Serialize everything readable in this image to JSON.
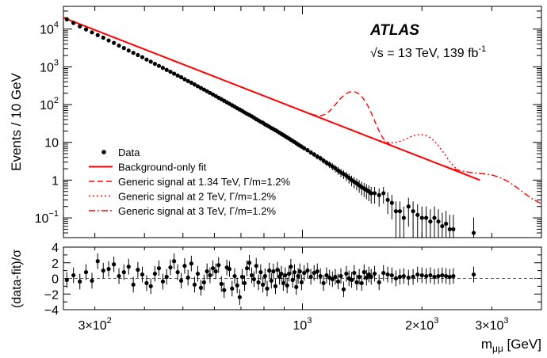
{
  "chart_data": [
    {
      "type": "scatter",
      "panel": "main",
      "ylabel": "Events / 10 GeV",
      "xscale": "log",
      "yscale": "log",
      "xlim": [
        250,
        4000
      ],
      "ylim": [
        0.03,
        40000
      ],
      "y_ticks": [
        {
          "value": 10000,
          "base": "10",
          "exp": "4"
        },
        {
          "value": 1000,
          "base": "10",
          "exp": "3"
        },
        {
          "value": 100,
          "base": "10",
          "exp": "2"
        },
        {
          "value": 10,
          "base": "10",
          "exp": ""
        },
        {
          "value": 1,
          "base": "1",
          "exp": ""
        },
        {
          "value": 0.1,
          "base": "10",
          "exp": "−1"
        }
      ],
      "annotation": {
        "experiment": "ATLAS",
        "energy_prefix": "√s = 13 TeV, 139 fb",
        "energy_exp": "-1"
      },
      "legend": {
        "position": "bottom-left",
        "entries": [
          {
            "label": "Data",
            "style": "marker"
          },
          {
            "label": "Background-only fit",
            "style": "solid"
          },
          {
            "label": "Generic signal at 1.34 TeV, Γ/m=1.2%",
            "style": "dashed"
          },
          {
            "label": "Generic signal at 2 TeV, Γ/m=1.2%",
            "style": "dotted"
          },
          {
            "label": "Generic signal at 3 TeV, Γ/m=1.2%",
            "style": "dashdot"
          }
        ]
      },
      "colors": {
        "data": "#000000",
        "fit": "#ff0000",
        "signal": "#ff0000"
      },
      "series": [
        {
          "name": "Data",
          "x": [
            255,
            265,
            275,
            285,
            295,
            305,
            315,
            325,
            335,
            345,
            355,
            365,
            375,
            385,
            395,
            405,
            415,
            425,
            435,
            445,
            455,
            465,
            475,
            485,
            495,
            505,
            515,
            525,
            535,
            545,
            555,
            565,
            575,
            585,
            595,
            605,
            615,
            625,
            635,
            645,
            655,
            665,
            675,
            685,
            695,
            705,
            715,
            725,
            735,
            745,
            755,
            765,
            775,
            785,
            795,
            805,
            815,
            825,
            835,
            845,
            855,
            865,
            875,
            885,
            895,
            905,
            915,
            925,
            935,
            945,
            955,
            965,
            975,
            985,
            995,
            1010,
            1030,
            1050,
            1070,
            1090,
            1110,
            1130,
            1150,
            1170,
            1190,
            1210,
            1230,
            1250,
            1270,
            1290,
            1310,
            1330,
            1350,
            1370,
            1390,
            1410,
            1430,
            1450,
            1470,
            1490,
            1520,
            1560,
            1600,
            1640,
            1680,
            1720,
            1760,
            1800,
            1850,
            1900,
            1950,
            2000,
            2050,
            2100,
            2150,
            2200,
            2250,
            2300,
            2350,
            2400,
            2700
          ],
          "y": [
            18000,
            14500,
            11800,
            9800,
            8200,
            6900,
            5900,
            5000,
            4300,
            3650,
            3150,
            2700,
            2350,
            2050,
            1800,
            1560,
            1370,
            1200,
            1060,
            940,
            830,
            740,
            660,
            590,
            530,
            470,
            420,
            380,
            340,
            305,
            275,
            250,
            226,
            204,
            185,
            168,
            152,
            139,
            126,
            115,
            105,
            96,
            88,
            80,
            74,
            68,
            62,
            57,
            53,
            49,
            45,
            41,
            38,
            35,
            33,
            30,
            28,
            26,
            24,
            22.5,
            21,
            19.5,
            18,
            16.8,
            15.6,
            14.5,
            13.5,
            12.6,
            11.7,
            10.9,
            10.2,
            9.5,
            8.8,
            8.2,
            7.7,
            7.0,
            6.2,
            5.4,
            4.8,
            4.2,
            3.8,
            3.3,
            2.9,
            2.6,
            2.3,
            2.05,
            1.8,
            1.6,
            1.45,
            1.3,
            1.15,
            1.0,
            0.9,
            0.82,
            0.73,
            0.65,
            0.6,
            0.55,
            0.5,
            0.45,
            0.45,
            0.4,
            0.45,
            0.3,
            0.25,
            0.15,
            0.15,
            0.1,
            0.2,
            0.15,
            0.12,
            0.1,
            0.1,
            0.08,
            0.1,
            0.08,
            0.06,
            0.07,
            0.05,
            0.05,
            0.04
          ]
        },
        {
          "name": "Background-only fit",
          "function": "power_law",
          "norm_x": 250,
          "norm_y": 20000,
          "index": -4.1,
          "x_range": [
            250,
            2800
          ]
        },
        {
          "name": "Generic signal at 1.34 TeV, Γ/m=1.2%",
          "mass": 1340,
          "peak": 200,
          "sigma_frac": 0.066
        },
        {
          "name": "Generic signal at 2 TeV, Γ/m=1.2%",
          "mass": 2000,
          "peak": 12,
          "sigma_frac": 0.08
        },
        {
          "name": "Generic signal at 3 TeV, Γ/m=1.2%",
          "mass": 3000,
          "peak": 0.6,
          "sigma_frac": 0.11
        }
      ]
    },
    {
      "type": "scatter",
      "panel": "ratio",
      "xlabel_main": "m",
      "xlabel_sub": "μμ",
      "xlabel_unit": " [GeV]",
      "ylabel": "(data-fit)/σ",
      "xscale": "log",
      "xlim": [
        250,
        4000
      ],
      "ylim": [
        -4,
        4
      ],
      "reference_line": 0,
      "y_ticks": [
        "4",
        "2",
        "0",
        "−2",
        "−4"
      ],
      "x_ticks": [
        {
          "value": 300,
          "base": "3×10",
          "exp": "2"
        },
        {
          "value": 1000,
          "base": "10",
          "exp": "3"
        },
        {
          "value": 2000,
          "base": "2×10",
          "exp": "3"
        },
        {
          "value": 3000,
          "base": "3×10",
          "exp": "3"
        }
      ],
      "series": [
        {
          "name": "Data",
          "x": [
            255,
            265,
            275,
            285,
            295,
            305,
            315,
            325,
            335,
            345,
            355,
            365,
            375,
            385,
            395,
            405,
            415,
            425,
            435,
            445,
            455,
            465,
            475,
            485,
            495,
            505,
            515,
            525,
            535,
            545,
            555,
            565,
            575,
            585,
            595,
            605,
            615,
            625,
            635,
            645,
            655,
            665,
            675,
            685,
            695,
            705,
            715,
            725,
            735,
            745,
            755,
            765,
            775,
            785,
            795,
            805,
            815,
            825,
            835,
            845,
            855,
            865,
            875,
            885,
            895,
            905,
            915,
            925,
            935,
            945,
            955,
            965,
            975,
            985,
            995,
            1010,
            1030,
            1050,
            1070,
            1090,
            1110,
            1130,
            1150,
            1170,
            1190,
            1210,
            1230,
            1250,
            1270,
            1290,
            1310,
            1330,
            1350,
            1370,
            1390,
            1410,
            1430,
            1450,
            1470,
            1490,
            1520,
            1560,
            1600,
            1640,
            1680,
            1720,
            1760,
            1800,
            1850,
            1900,
            1950,
            2000,
            2050,
            2100,
            2150,
            2200,
            2250,
            2300,
            2350,
            2400,
            2700
          ],
          "y": [
            -0.2,
            0.4,
            -0.4,
            0.8,
            -0.3,
            2.2,
            1.0,
            1.2,
            1.8,
            0.3,
            0.8,
            1.5,
            -0.8,
            1.1,
            0.5,
            -0.6,
            -1.0,
            0.6,
            1.3,
            -0.4,
            0.2,
            1.4,
            2.2,
            0.8,
            -0.3,
            1.6,
            0.1,
            1.9,
            -0.8,
            0.6,
            -1.2,
            -0.5,
            0.9,
            0.4,
            1.3,
            0.9,
            1.7,
            -0.7,
            -1.5,
            1.4,
            1.2,
            -1.3,
            0.3,
            -0.9,
            -2.4,
            0.2,
            -0.6,
            1.3,
            2.0,
            0.4,
            -0.1,
            1.6,
            -0.5,
            0.8,
            -0.8,
            0.3,
            -1.3,
            1.0,
            -0.3,
            0.9,
            -1.0,
            1.1,
            0.2,
            0.6,
            -0.6,
            0.4,
            -0.9,
            0.6,
            1.5,
            -0.2,
            0.8,
            -1.1,
            0.3,
            0.9,
            -0.5,
            0.7,
            1.0,
            0.2,
            0.7,
            0.9,
            0.3,
            -0.6,
            0.4,
            0.1,
            -0.1,
            0.2,
            -0.4,
            0.3,
            -1.4,
            0.6,
            0.0,
            -0.2,
            0.7,
            -0.5,
            0.2,
            -0.6,
            0.8,
            0.1,
            0.5,
            0.2,
            0.6,
            -0.5,
            0.7,
            0.5,
            0.4,
            0.0,
            0.2,
            0.3,
            0.1,
            0.2,
            0.5,
            0.4,
            0.3,
            0.4,
            0.2,
            0.3,
            0.4,
            0.3,
            0.2,
            0.3,
            0.5
          ]
        }
      ]
    }
  ]
}
